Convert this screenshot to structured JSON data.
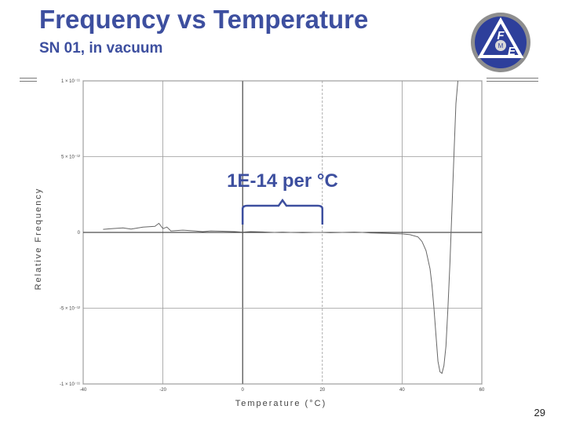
{
  "slide": {
    "title": "Frequency vs Temperature",
    "subtitle": "SN 01, in vacuum",
    "page_number": "29"
  },
  "logo": {
    "letters_top": "F",
    "letters_bottom": "E",
    "center": "M"
  },
  "chart_data": {
    "type": "line",
    "xlabel": "Temperature (°C)",
    "ylabel": "Relative Frequency",
    "xlim": [
      -40,
      60
    ],
    "ylim": [
      -1e-11,
      1e-11
    ],
    "x_ticks": [
      -40,
      -20,
      0,
      20,
      40,
      60
    ],
    "x_tick_labels": [
      "-40",
      "-20",
      "0",
      "20",
      "40",
      "60"
    ],
    "y_ticks": [
      -1e-11,
      -5e-12,
      0,
      5e-12,
      1e-11
    ],
    "y_tick_labels": [
      "-1 × 10⁻¹¹",
      "-5 × 10⁻¹²",
      "0",
      "5 × 10⁻¹²",
      "1 × 10⁻¹¹"
    ],
    "grid": true,
    "series": [
      {
        "color": "#666666",
        "x": [
          -35,
          -33,
          -30,
          -28,
          -25,
          -22,
          -21,
          -20,
          -19,
          -18,
          -15,
          -12,
          -10,
          -8,
          -5,
          -2,
          0,
          2,
          5,
          8,
          10,
          12,
          15,
          18,
          20,
          22,
          25,
          28,
          30,
          32,
          35,
          38,
          40,
          42,
          44,
          45,
          46,
          47,
          47.5,
          48,
          48.5,
          49,
          49.5,
          50,
          50.5,
          51,
          51.5,
          52,
          52.5,
          53,
          53.5,
          54
        ],
        "y": [
          2e-13,
          2.5e-13,
          3e-13,
          2.2e-13,
          3.5e-13,
          4e-13,
          6e-13,
          2.5e-13,
          3.5e-13,
          1e-13,
          1.5e-13,
          1e-13,
          5e-14,
          1e-13,
          8e-14,
          5e-14,
          2e-14,
          5e-14,
          3e-14,
          0.0,
          2e-14,
          0.0,
          -2e-14,
          0.0,
          0.0,
          -2e-14,
          0.0,
          2e-14,
          0.0,
          -3e-14,
          -5e-14,
          -8e-14,
          -1e-13,
          -1.5e-13,
          -3e-13,
          -6e-13,
          -1.2e-12,
          -2.4e-12,
          -3.5e-12,
          -5e-12,
          -6.8e-12,
          -8.5e-12,
          -9.2e-12,
          -9.3e-12,
          -8.8e-12,
          -7.5e-12,
          -5e-12,
          -2e-12,
          1.5e-12,
          5e-12,
          8.5e-12,
          1e-11
        ]
      }
    ],
    "annotations": [
      {
        "text": "1E-14 per °C",
        "x_start": 0,
        "x_end": 20
      }
    ]
  },
  "colors": {
    "title": "#3d4f9f",
    "annotation": "#3d4f9f",
    "trace": "#666666",
    "grid": "#9a9a9a"
  }
}
